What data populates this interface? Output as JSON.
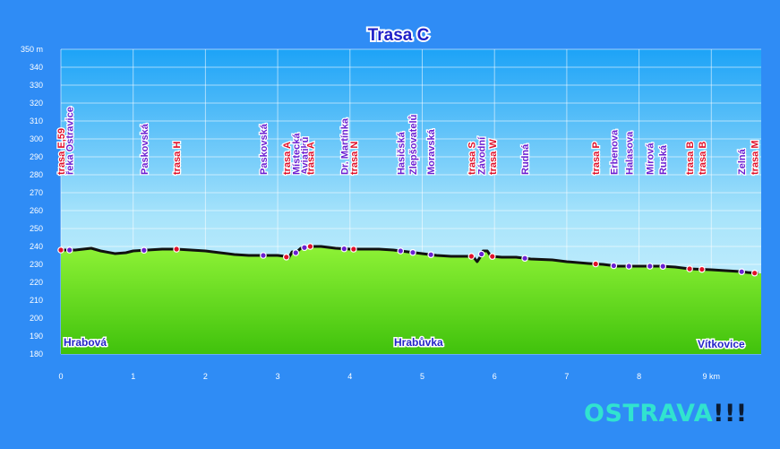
{
  "chart_data": {
    "type": "area",
    "title": "Trasa C",
    "xlabel": "",
    "ylabel": "",
    "x_unit": "km",
    "y_unit": "m",
    "xlim": [
      0,
      9.7
    ],
    "ylim": [
      180,
      350
    ],
    "x_ticks": [
      0,
      1,
      2,
      3,
      4,
      5,
      6,
      7,
      8,
      9
    ],
    "y_ticks": [
      180,
      190,
      200,
      210,
      220,
      230,
      240,
      250,
      260,
      270,
      280,
      290,
      300,
      310,
      320,
      330,
      340,
      350
    ],
    "grid": true,
    "profile": [
      [
        0.0,
        238
      ],
      [
        0.2,
        238
      ],
      [
        0.42,
        239
      ],
      [
        0.55,
        237.5
      ],
      [
        0.75,
        236
      ],
      [
        0.9,
        236.5
      ],
      [
        1.0,
        237.5
      ],
      [
        1.2,
        238
      ],
      [
        1.4,
        238.5
      ],
      [
        1.6,
        238.5
      ],
      [
        1.8,
        238
      ],
      [
        2.0,
        237.5
      ],
      [
        2.2,
        236.5
      ],
      [
        2.4,
        235.5
      ],
      [
        2.6,
        235
      ],
      [
        2.8,
        235
      ],
      [
        3.0,
        235
      ],
      [
        3.1,
        234.5
      ],
      [
        3.15,
        233.5
      ],
      [
        3.2,
        237
      ],
      [
        3.25,
        236.5
      ],
      [
        3.32,
        239
      ],
      [
        3.45,
        240
      ],
      [
        3.6,
        240
      ],
      [
        3.8,
        239
      ],
      [
        4.0,
        238.5
      ],
      [
        4.2,
        238.5
      ],
      [
        4.4,
        238.5
      ],
      [
        4.6,
        238
      ],
      [
        4.8,
        237
      ],
      [
        5.0,
        236
      ],
      [
        5.2,
        235
      ],
      [
        5.4,
        234.5
      ],
      [
        5.6,
        234.5
      ],
      [
        5.7,
        234.5
      ],
      [
        5.76,
        231.5
      ],
      [
        5.8,
        234
      ],
      [
        5.84,
        237.5
      ],
      [
        5.9,
        237.5
      ],
      [
        5.95,
        234.5
      ],
      [
        6.1,
        234
      ],
      [
        6.3,
        234
      ],
      [
        6.5,
        233
      ],
      [
        6.8,
        232.5
      ],
      [
        7.0,
        231.5
      ],
      [
        7.3,
        230.5
      ],
      [
        7.5,
        230
      ],
      [
        7.7,
        229
      ],
      [
        8.0,
        229
      ],
      [
        8.3,
        229
      ],
      [
        8.5,
        228.5
      ],
      [
        8.7,
        227.5
      ],
      [
        9.0,
        227
      ],
      [
        9.2,
        226.5
      ],
      [
        9.4,
        226
      ],
      [
        9.5,
        225.5
      ],
      [
        9.65,
        225
      ]
    ],
    "stops": [
      {
        "x": 0.0,
        "color": "red",
        "labels": [
          "trasa E,59"
        ]
      },
      {
        "x": 0.12,
        "color": "purple",
        "labels": [
          "řeka Ostravice"
        ]
      },
      {
        "x": 1.15,
        "color": "purple",
        "labels": [
          "Paskovská"
        ]
      },
      {
        "x": 1.6,
        "color": "red",
        "labels": [
          "trasa H"
        ]
      },
      {
        "x": 2.8,
        "color": "purple",
        "labels": [
          "Paskovská"
        ]
      },
      {
        "x": 3.12,
        "color": "red",
        "labels": [
          "trasa A"
        ]
      },
      {
        "x": 3.25,
        "color": "purple",
        "labels": [
          "Místecká"
        ]
      },
      {
        "x": 3.37,
        "color": "purple",
        "labels": [
          "Aviatiků"
        ]
      },
      {
        "x": 3.45,
        "color": "red",
        "labels": [
          "trasa A"
        ]
      },
      {
        "x": 3.92,
        "color": "purple",
        "labels": [
          "Dr. Martínka"
        ]
      },
      {
        "x": 4.05,
        "color": "red",
        "labels": [
          "trasa N"
        ]
      },
      {
        "x": 4.7,
        "color": "purple",
        "labels": [
          "Hasičská"
        ]
      },
      {
        "x": 4.87,
        "color": "purple",
        "labels": [
          "Zlepšovatelů"
        ]
      },
      {
        "x": 5.12,
        "color": "purple",
        "labels": [
          "Moravská"
        ]
      },
      {
        "x": 5.68,
        "color": "red",
        "labels": [
          "trasa S"
        ]
      },
      {
        "x": 5.82,
        "color": "purple",
        "labels": [
          "Závodní"
        ]
      },
      {
        "x": 5.97,
        "color": "red",
        "labels": [
          "trasa W"
        ]
      },
      {
        "x": 6.42,
        "color": "purple",
        "labels": [
          "Rudná"
        ]
      },
      {
        "x": 7.4,
        "color": "red",
        "labels": [
          "trasa P"
        ]
      },
      {
        "x": 7.65,
        "color": "purple",
        "labels": [
          "Erbenova"
        ]
      },
      {
        "x": 7.86,
        "color": "purple",
        "labels": [
          "Halasova"
        ]
      },
      {
        "x": 8.15,
        "color": "purple",
        "labels": [
          "Mírová"
        ]
      },
      {
        "x": 8.33,
        "color": "purple",
        "labels": [
          "Ruská"
        ]
      },
      {
        "x": 8.7,
        "color": "red",
        "labels": [
          "trasa B"
        ]
      },
      {
        "x": 8.87,
        "color": "red",
        "labels": [
          "trasa B"
        ]
      },
      {
        "x": 9.42,
        "color": "purple",
        "labels": [
          "Zelná"
        ]
      },
      {
        "x": 9.6,
        "color": "red",
        "labels": [
          "trasa M"
        ]
      }
    ],
    "districts": [
      "Hrabová",
      "Hrabůvka",
      "Vítkovice"
    ]
  },
  "colors": {
    "background": "#2f8cf5",
    "fill_top": "#8ef236",
    "fill_bottom": "#40c20c",
    "line": "#111111",
    "red_label": "#e0102a",
    "purple_label": "#6a1fd2",
    "district_text": "#2424c8"
  },
  "brand": {
    "name": "OSTRAVA",
    "marks": "!!!"
  }
}
